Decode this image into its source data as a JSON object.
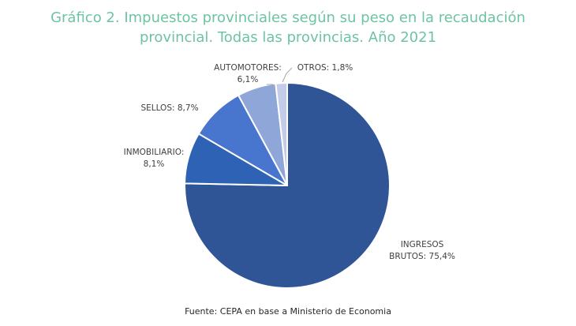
{
  "chart_data": {
    "type": "pie",
    "title": "Gráfico 2. Impuestos provinciales según su peso en la recaudación\nprovincial. Todas las provincias. Año 2021",
    "source": "Fuente: CEPA en base a Ministerio de Economia",
    "slices": [
      {
        "name": "INGRESOS BRUTOS",
        "value": 75.4,
        "label_lines": [
          "INGRESOS",
          "BRUTOS: 75,4%"
        ],
        "color": "#2f5597"
      },
      {
        "name": "INMOBILIARIO",
        "value": 8.1,
        "label_lines": [
          "INMOBILIARIO:",
          "8,1%"
        ],
        "color": "#2e62b4"
      },
      {
        "name": "SELLOS",
        "value": 8.7,
        "label_lines": [
          "SELLOS: 8,7%"
        ],
        "color": "#4876cf"
      },
      {
        "name": "AUTOMOTORES",
        "value": 6.1,
        "label_lines": [
          "AUTOMOTORES:",
          "6,1%"
        ],
        "color": "#8ea6d8"
      },
      {
        "name": "OTROS",
        "value": 1.8,
        "label_lines": [
          "OTROS: 1,8%"
        ],
        "color": "#c3cdea"
      }
    ]
  }
}
